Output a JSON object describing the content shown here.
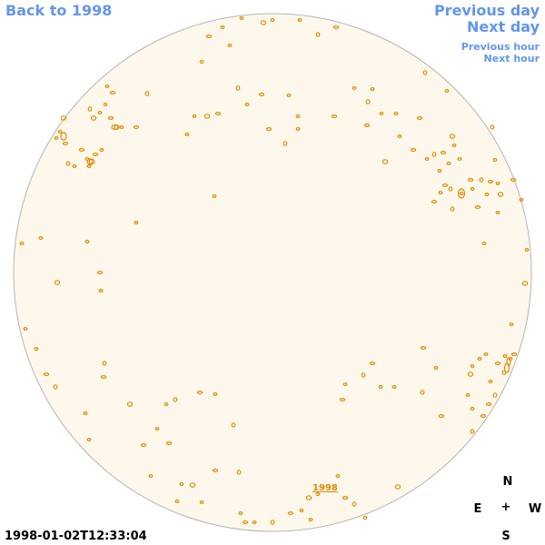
{
  "nav": {
    "back": "Back to 1998",
    "prev_day": "Previous day",
    "next_day": "Next day",
    "prev_hour": "Previous hour",
    "next_hour": "Next hour"
  },
  "disk": {
    "year_link": "1998",
    "disk_color": "#fdf8eb",
    "limb_color": "#b4b4b4",
    "contour_color": "#e08a00"
  },
  "timestamp": "1998-01-02T12:33:04",
  "compass": {
    "north": "N",
    "south": "S",
    "east": "E",
    "west": "W",
    "center": "+"
  }
}
